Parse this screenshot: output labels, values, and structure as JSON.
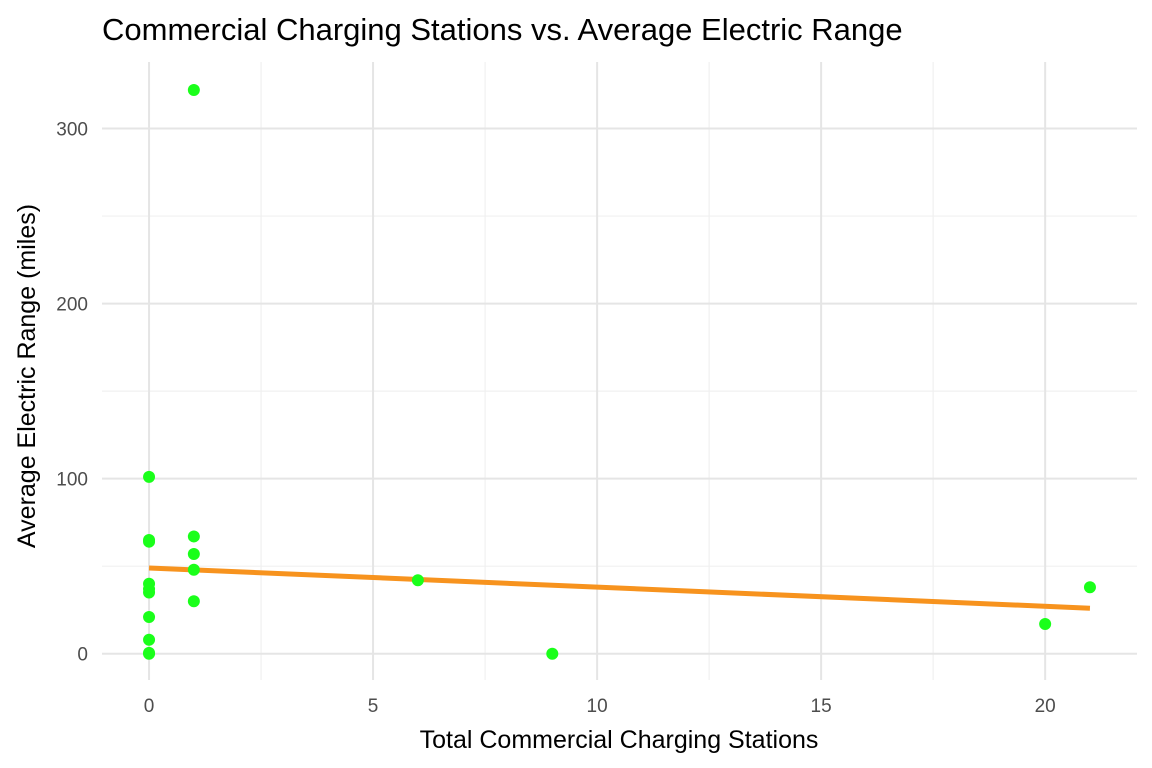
{
  "chart_data": {
    "type": "scatter",
    "title": "Commercial Charging Stations vs. Average Electric Range",
    "xlabel": "Total Commercial Charging Stations",
    "ylabel": "Average Electric Range (miles)",
    "xlim": [
      -1.05,
      22.05
    ],
    "ylim": [
      -15,
      338
    ],
    "x_ticks": [
      0,
      5,
      10,
      15,
      20
    ],
    "x_minor_ticks": [
      2.5,
      7.5,
      12.5,
      17.5
    ],
    "y_ticks": [
      0,
      100,
      200,
      300
    ],
    "y_minor_ticks": [
      50,
      150,
      250
    ],
    "grid": true,
    "legend": "none",
    "point_color": "#1aff1a",
    "line_color": "#f7931e",
    "series": [
      {
        "points": [
          {
            "x": 0,
            "y": 101
          },
          {
            "x": 0,
            "y": 65
          },
          {
            "x": 0,
            "y": 64
          },
          {
            "x": 0,
            "y": 40
          },
          {
            "x": 0,
            "y": 37
          },
          {
            "x": 0,
            "y": 35
          },
          {
            "x": 0,
            "y": 21
          },
          {
            "x": 0,
            "y": 8
          },
          {
            "x": 0,
            "y": 0.5
          },
          {
            "x": 0,
            "y": 0
          },
          {
            "x": 1,
            "y": 322
          },
          {
            "x": 1,
            "y": 67
          },
          {
            "x": 1,
            "y": 57
          },
          {
            "x": 1,
            "y": 48
          },
          {
            "x": 1,
            "y": 30
          },
          {
            "x": 6,
            "y": 42
          },
          {
            "x": 9,
            "y": 0
          },
          {
            "x": 20,
            "y": 17
          },
          {
            "x": 21,
            "y": 38
          }
        ]
      }
    ],
    "trend_line": {
      "x": [
        0,
        21
      ],
      "y": [
        49,
        26
      ]
    }
  }
}
